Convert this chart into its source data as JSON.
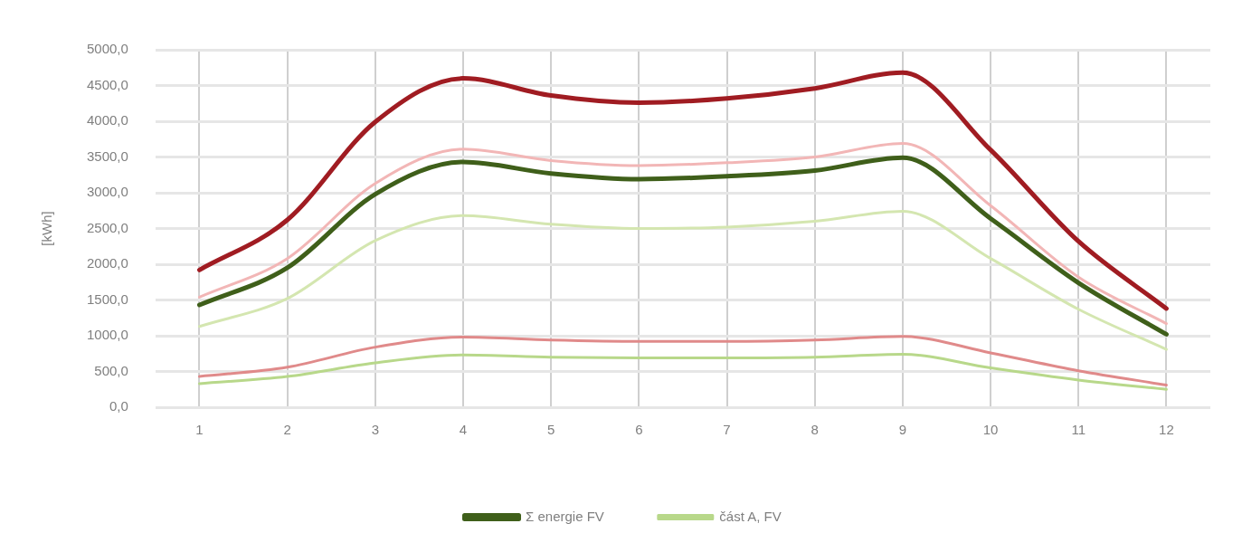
{
  "chart_data": {
    "type": "line",
    "ylabel": "[kWh]",
    "categories": [
      "1",
      "2",
      "3",
      "4",
      "5",
      "6",
      "7",
      "8",
      "9",
      "10",
      "11",
      "12"
    ],
    "ylim": [
      0,
      5000
    ],
    "yticks": [
      {
        "value": 0,
        "label": "0,0"
      },
      {
        "value": 500,
        "label": "500,0"
      },
      {
        "value": 1000,
        "label": "1000,0"
      },
      {
        "value": 1500,
        "label": "1500,0"
      },
      {
        "value": 2000,
        "label": "2000,0"
      },
      {
        "value": 2500,
        "label": "2500,0"
      },
      {
        "value": 3000,
        "label": "3000,0"
      },
      {
        "value": 3500,
        "label": "3500,0"
      },
      {
        "value": 4000,
        "label": "4000,0"
      },
      {
        "value": 4500,
        "label": "4500,0"
      },
      {
        "value": 5000,
        "label": "5000,0"
      }
    ],
    "grid": true,
    "legend": "bottom",
    "marker": "none",
    "line_style": "solid",
    "series": [
      {
        "color": "#a01c22",
        "values": [
          1920,
          2620,
          3990,
          4600,
          4360,
          4260,
          4320,
          4460,
          4680,
          3600,
          2320,
          1380
        ]
      },
      {
        "color": "#f2b6b6",
        "values": [
          1540,
          2080,
          3130,
          3610,
          3450,
          3380,
          3420,
          3500,
          3690,
          2820,
          1820,
          1170
        ]
      },
      {
        "name": "Σ energie FV",
        "color": "#3f5f1a",
        "values": [
          1430,
          1950,
          2980,
          3430,
          3270,
          3190,
          3230,
          3310,
          3490,
          2640,
          1740,
          1020
        ]
      },
      {
        "color": "#d4e6b0",
        "values": [
          1130,
          1520,
          2330,
          2680,
          2560,
          2500,
          2520,
          2600,
          2740,
          2080,
          1370,
          810
        ]
      },
      {
        "color": "#e08a8a",
        "values": [
          430,
          560,
          840,
          980,
          940,
          920,
          920,
          940,
          990,
          760,
          510,
          310
        ]
      },
      {
        "name": "část A, FV",
        "color": "#b8d88a",
        "values": [
          330,
          430,
          620,
          730,
          700,
          690,
          690,
          700,
          740,
          550,
          380,
          250
        ]
      }
    ]
  }
}
